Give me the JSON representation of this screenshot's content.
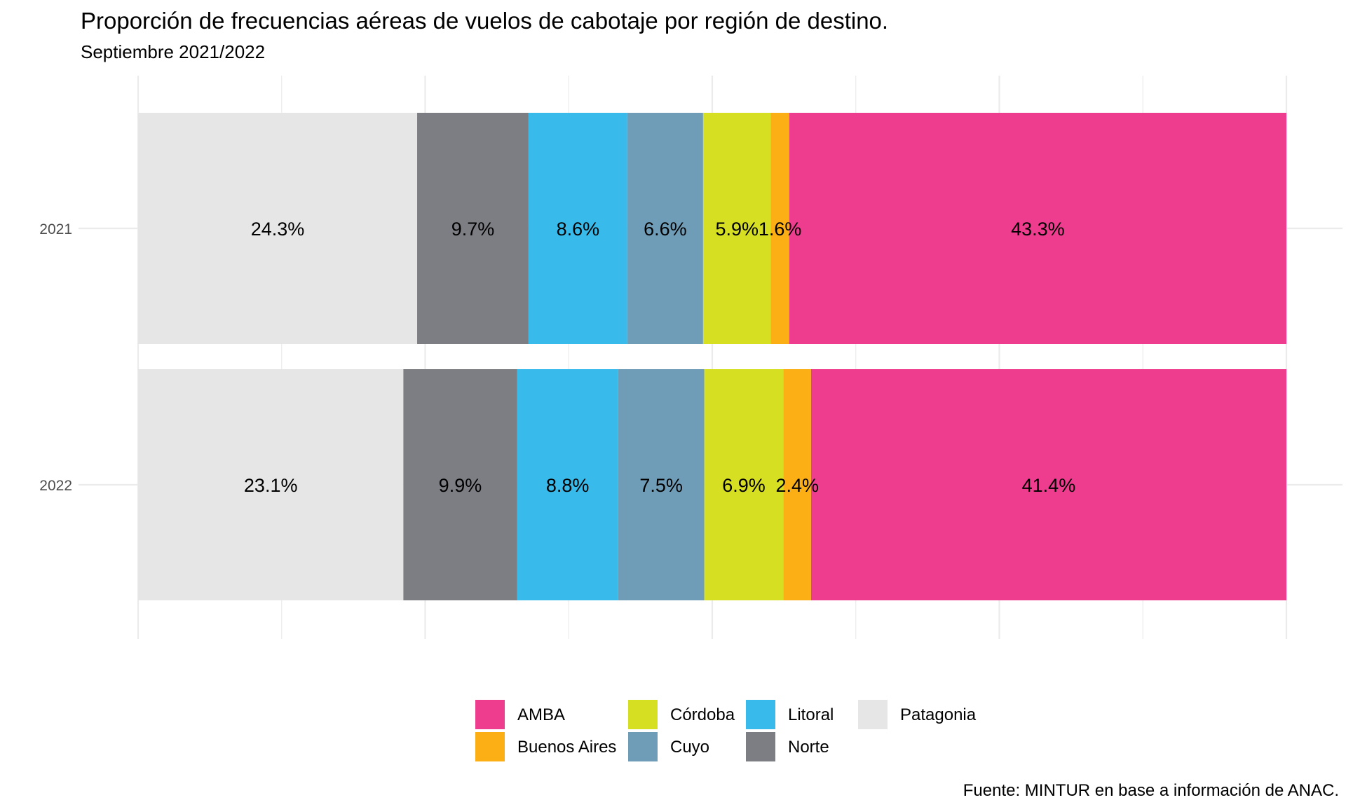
{
  "chart_data": {
    "type": "bar",
    "orientation": "horizontal",
    "stacked": true,
    "normalized": true,
    "title": "Proporción de frecuencias aéreas de vuelos de cabotaje por región de destino.",
    "subtitle": "Septiembre 2021/2022",
    "caption": "Fuente: MINTUR en base a información de ANAC.",
    "xlabel": "",
    "ylabel": "",
    "xlim": [
      0,
      1
    ],
    "grid": true,
    "legend_position": "bottom",
    "categories": [
      "2021",
      "2022"
    ],
    "series": [
      {
        "name": "Patagonia",
        "color": "#E6E6E6",
        "values": [
          24.3,
          23.1
        ],
        "labels": [
          "24.3%",
          "23.1%"
        ]
      },
      {
        "name": "Norte",
        "color": "#7D7E84",
        "values": [
          9.7,
          9.9
        ],
        "labels": [
          "9.7%",
          "9.9%"
        ]
      },
      {
        "name": "Litoral",
        "color": "#38BAEB",
        "values": [
          8.6,
          8.8
        ],
        "labels": [
          "8.6%",
          "8.8%"
        ]
      },
      {
        "name": "Cuyo",
        "color": "#6F9CB6",
        "values": [
          6.6,
          7.5
        ],
        "labels": [
          "6.6%",
          "7.5%"
        ]
      },
      {
        "name": "Córdoba",
        "color": "#D6DF22",
        "values": [
          5.9,
          6.9
        ],
        "labels": [
          "5.9%",
          "6.9%"
        ]
      },
      {
        "name": "Buenos Aires",
        "color": "#FBAF14",
        "values": [
          1.6,
          2.4
        ],
        "labels": [
          "1.6%",
          "2.4%"
        ]
      },
      {
        "name": "AMBA",
        "color": "#EE3D8E",
        "values": [
          43.3,
          41.4
        ],
        "labels": [
          "43.3%",
          "41.4%"
        ]
      }
    ],
    "legend": [
      {
        "name": "AMBA",
        "color": "#EE3D8E"
      },
      {
        "name": "Buenos Aires",
        "color": "#FBAF14"
      },
      {
        "name": "Córdoba",
        "color": "#D6DF22"
      },
      {
        "name": "Cuyo",
        "color": "#6F9CB6"
      },
      {
        "name": "Litoral",
        "color": "#38BAEB"
      },
      {
        "name": "Norte",
        "color": "#7D7E84"
      },
      {
        "name": "Patagonia",
        "color": "#E6E6E6"
      }
    ]
  }
}
